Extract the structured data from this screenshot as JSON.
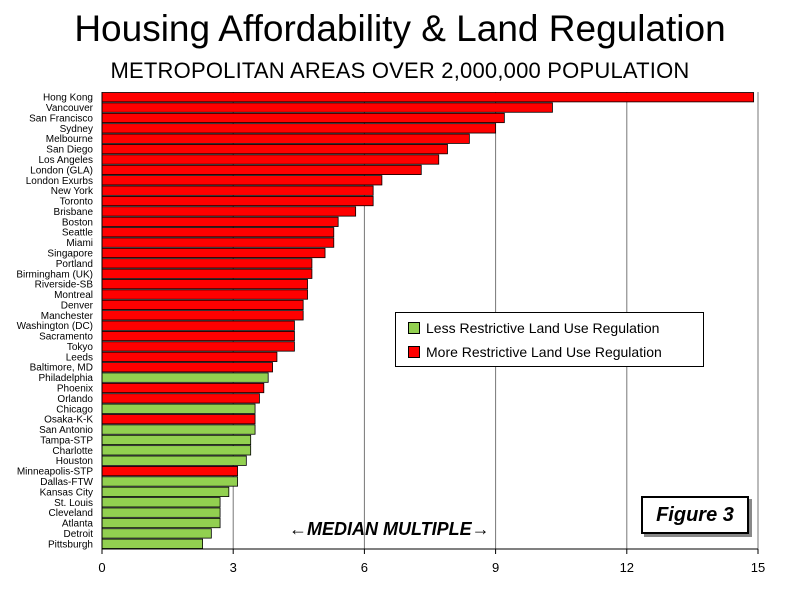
{
  "chart_data": {
    "type": "bar",
    "orientation": "horizontal",
    "title": "Housing Affordability & Land Regulation",
    "subtitle": "METROPOLITAN AREAS OVER 2,000,000 POPULATION",
    "xlabel": "←MEDIAN MULTIPLE→",
    "xlim": [
      0,
      15
    ],
    "xticks": [
      0,
      3,
      6,
      9,
      12,
      15
    ],
    "grid": "vertical",
    "legend_position": "center-right",
    "figure_label": "Figure 3",
    "legend": [
      {
        "key": "less",
        "label": "Less Restrictive Land Use Regulation",
        "color": "#92d050"
      },
      {
        "key": "more",
        "label": "More Restrictive Land Use Regulation",
        "color": "#ff0000"
      }
    ],
    "categories": [
      "Hong Kong",
      "Vancouver",
      "San Francisco",
      "Sydney",
      "Melbourne",
      "San Diego",
      "Los Angeles",
      "London (GLA)",
      "London Exurbs",
      "New York",
      "Toronto",
      "Brisbane",
      "Boston",
      "Seattle",
      "Miami",
      "Singapore",
      "Portland",
      "Birmingham (UK)",
      "Riverside-SB",
      "Montreal",
      "Denver",
      "Manchester",
      "Washington (DC)",
      "Sacramento",
      "Tokyo",
      "Leeds",
      "Baltimore, MD",
      "Philadelphia",
      "Phoenix",
      "Orlando",
      "Chicago",
      "Osaka-K-K",
      "San Antonio",
      "Tampa-STP",
      "Charlotte",
      "Houston",
      "Minneapolis-STP",
      "Dallas-FTW",
      "Kansas City",
      "St. Louis",
      "Cleveland",
      "Atlanta",
      "Detroit",
      "Pittsburgh"
    ],
    "values": [
      14.9,
      10.3,
      9.2,
      9.0,
      8.4,
      7.9,
      7.7,
      7.3,
      6.4,
      6.2,
      6.2,
      5.8,
      5.4,
      5.3,
      5.3,
      5.1,
      4.8,
      4.8,
      4.7,
      4.7,
      4.6,
      4.6,
      4.4,
      4.4,
      4.4,
      4.0,
      3.9,
      3.8,
      3.7,
      3.6,
      3.5,
      3.5,
      3.5,
      3.4,
      3.4,
      3.3,
      3.1,
      3.1,
      2.9,
      2.7,
      2.7,
      2.7,
      2.5,
      2.3
    ],
    "regulation": [
      "more",
      "more",
      "more",
      "more",
      "more",
      "more",
      "more",
      "more",
      "more",
      "more",
      "more",
      "more",
      "more",
      "more",
      "more",
      "more",
      "more",
      "more",
      "more",
      "more",
      "more",
      "more",
      "more",
      "more",
      "more",
      "more",
      "more",
      "less",
      "more",
      "more",
      "less",
      "more",
      "less",
      "less",
      "less",
      "less",
      "more",
      "less",
      "less",
      "less",
      "less",
      "less",
      "less",
      "less"
    ]
  }
}
